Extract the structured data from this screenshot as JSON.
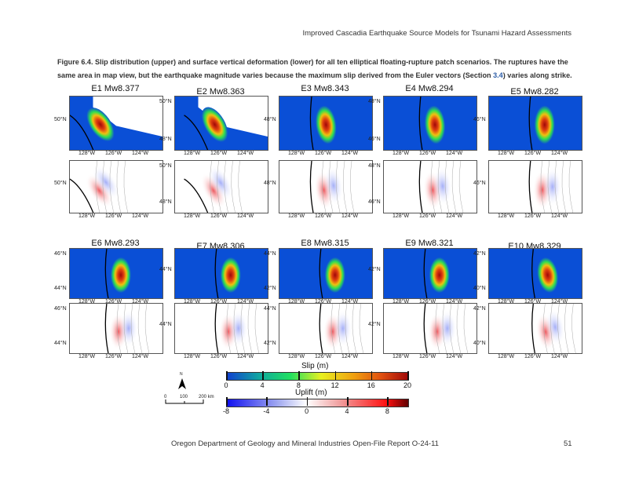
{
  "header": {
    "running_title": "Improved Cascadia Earthquake Source Models for Tsunami Hazard Assessments"
  },
  "caption": {
    "label": "Figure 6.4.",
    "text_before": " Slip distribution (upper) and surface vertical deformation (lower) for all ten elliptical floating-rupture patch scenarios. The ruptures have the same area in map view, but the earthquake magnitude varies because the maximum slip derived from the Euler vectors (Section ",
    "ref": "3.4",
    "text_after": ") varies along strike."
  },
  "colors": {
    "slip_background": "#0a4fd6",
    "uplift_red": "#e8333a",
    "uplift_blue": "#4a5ef0",
    "link": "#2f5fa8"
  },
  "panels": [
    {
      "title": "E1 Mw8.377",
      "x_ticks": [
        "128°W",
        "126°W",
        "124°W"
      ],
      "top_lat": [
        "50°N"
      ],
      "bottom_lat": [
        "50°N"
      ]
    },
    {
      "title": "E2 Mw8.363",
      "x_ticks": [
        "128°W",
        "126°W",
        "124°W"
      ],
      "top_lat": [
        "50°N",
        "48°N"
      ],
      "bottom_lat": [
        "50°N",
        "48°N"
      ]
    },
    {
      "title": "E3 Mw8.343",
      "x_ticks": [
        "128°W",
        "126°W",
        "124°W"
      ],
      "top_lat": [
        "48°N"
      ],
      "bottom_lat": [
        "48°N"
      ]
    },
    {
      "title": "E4 Mw8.294",
      "x_ticks": [
        "128°W",
        "126°W",
        "124°W"
      ],
      "top_lat": [
        "48°N",
        "46°N"
      ],
      "bottom_lat": [
        "48°N",
        "46°N"
      ]
    },
    {
      "title": "E5 Mw8.282",
      "x_ticks": [
        "128°W",
        "126°W",
        "124°W"
      ],
      "top_lat": [
        "46°N"
      ],
      "bottom_lat": [
        "46°N"
      ]
    },
    {
      "title": "E6 Mw8.293",
      "x_ticks": [
        "128°W",
        "126°W",
        "124°W"
      ],
      "top_lat": [
        "46°N",
        "44°N"
      ],
      "bottom_lat": [
        "46°N",
        "44°N"
      ]
    },
    {
      "title": "E7 Mw8.306",
      "x_ticks": [
        "128°W",
        "126°W",
        "124°W"
      ],
      "top_lat": [
        "44°N"
      ],
      "bottom_lat": [
        "44°N"
      ]
    },
    {
      "title": "E8 Mw8.315",
      "x_ticks": [
        "128°W",
        "126°W",
        "124°W"
      ],
      "top_lat": [
        "44°N",
        "42°N"
      ],
      "bottom_lat": [
        "44°N",
        "42°N"
      ]
    },
    {
      "title": "E9 Mw8.321",
      "x_ticks": [
        "128°W",
        "126°W",
        "124°W"
      ],
      "top_lat": [
        "42°N"
      ],
      "bottom_lat": [
        "42°N"
      ]
    },
    {
      "title": "E10 Mw8.329",
      "x_ticks": [
        "128°W",
        "126°W",
        "124°W"
      ],
      "top_lat": [
        "42°N",
        "40°N"
      ],
      "bottom_lat": [
        "42°N",
        "40°N"
      ]
    }
  ],
  "legend": {
    "slip": {
      "title": "Slip (m)",
      "ticks": [
        "0",
        "4",
        "8",
        "12",
        "16",
        "20"
      ],
      "range": [
        0,
        20
      ]
    },
    "uplift": {
      "title": "Uplift (m)",
      "ticks": [
        "-8",
        "-4",
        "0",
        "4",
        "8"
      ],
      "range": [
        -8,
        10
      ]
    },
    "north_label": "N",
    "scale": {
      "ticks": [
        "0",
        "100",
        "200 km"
      ]
    }
  },
  "footer": {
    "report": "Oregon Department of Geology and Mineral Industries Open-File Report O-24-11",
    "page_number": "51"
  }
}
